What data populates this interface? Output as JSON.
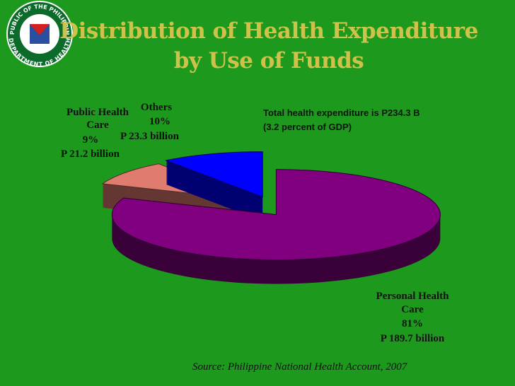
{
  "logo": {
    "top_text": "REPUBLIC OF THE PHILIPPINES",
    "bottom_text": "DEPARTMENT OF HEALTH"
  },
  "chart_data": {
    "type": "pie",
    "title": [
      "Distribution of Health Expenditure",
      "by Use of Funds"
    ],
    "categories": [
      "Personal Health Care",
      "Public Health Care",
      "Others"
    ],
    "values": [
      81,
      9,
      10
    ],
    "value_labels": [
      "81%",
      "9%",
      "10%"
    ],
    "amount_labels": [
      "P 189.7 billion",
      "P 21.2 billion",
      "P 23.3 billion"
    ],
    "colors": [
      "#800080",
      "#e07b70",
      "#0000ff"
    ],
    "annotation": [
      "Total health expenditure  is P234.3 B",
      "(3.2 percent of GDP)"
    ],
    "source": "Source: Philippine National Health Account, 2007"
  }
}
